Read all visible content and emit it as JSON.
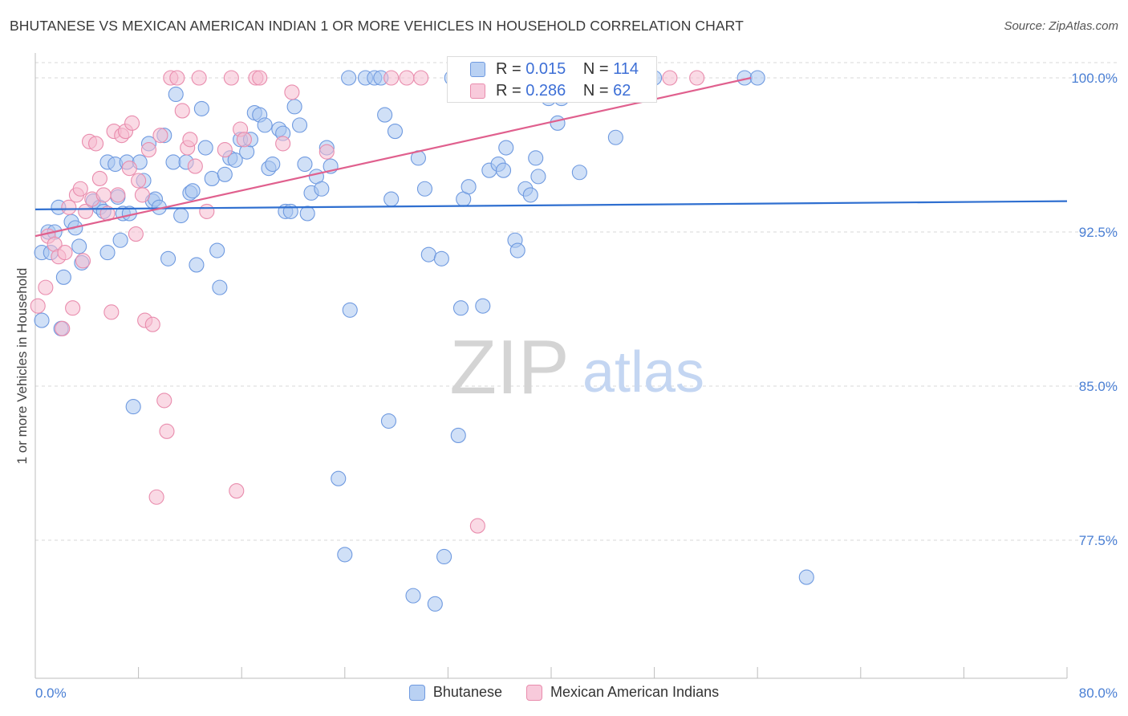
{
  "title": "BHUTANESE VS MEXICAN AMERICAN INDIAN 1 OR MORE VEHICLES IN HOUSEHOLD CORRELATION CHART",
  "source": "Source: ZipAtlas.com",
  "watermark": {
    "zip": "ZIP",
    "atlas": "atlas"
  },
  "colors": {
    "blue_fill": "#a9c6f0",
    "blue_stroke": "#6f9ae0",
    "blue_line": "#2f6fd0",
    "pink_fill": "#f5bcd0",
    "pink_stroke": "#e98cad",
    "pink_line": "#e0608e",
    "axis_label": "#4a7fd4",
    "grid": "#d9d9d9"
  },
  "stats": {
    "blue": {
      "r_label": "R =",
      "r_value": "0.015",
      "n_label": "N =",
      "n_value": "114"
    },
    "pink": {
      "r_label": "R =",
      "r_value": "0.286",
      "n_label": "N =",
      "n_value": "62"
    }
  },
  "chart_data": {
    "type": "scatter",
    "title": "BHUTANESE VS MEXICAN AMERICAN INDIAN 1 OR MORE VEHICLES IN HOUSEHOLD CORRELATION CHART",
    "xlabel": "",
    "ylabel": "1 or more Vehicles in Household",
    "xlim": [
      0,
      80
    ],
    "ylim": [
      70.5,
      101.5
    ],
    "x_tick_labels": [
      "0.0%",
      "80.0%"
    ],
    "y_ticks": [
      {
        "value": 100.0,
        "label": "100.0%"
      },
      {
        "value": 92.5,
        "label": "92.5%"
      },
      {
        "value": 85.0,
        "label": "85.0%"
      },
      {
        "value": 77.5,
        "label": "77.5%"
      }
    ],
    "legend": [
      "Bhutanese",
      "Mexican American Indians"
    ],
    "series": [
      {
        "name": "Bhutanese",
        "r": 0.015,
        "n": 114,
        "trend": {
          "x": [
            0,
            80
          ],
          "y": [
            93.6,
            94.0
          ]
        },
        "points": [
          [
            0.5,
            91.5
          ],
          [
            0.5,
            88.2
          ],
          [
            1.0,
            92.5
          ],
          [
            1.2,
            91.5
          ],
          [
            1.5,
            92.5
          ],
          [
            1.8,
            93.7
          ],
          [
            2.0,
            87.8
          ],
          [
            2.2,
            90.3
          ],
          [
            2.8,
            93.0
          ],
          [
            3.1,
            92.7
          ],
          [
            3.4,
            91.8
          ],
          [
            3.6,
            91.0
          ],
          [
            4.5,
            94.0
          ],
          [
            5.0,
            93.7
          ],
          [
            5.3,
            93.5
          ],
          [
            5.6,
            91.5
          ],
          [
            5.6,
            95.9
          ],
          [
            6.2,
            95.8
          ],
          [
            6.4,
            94.2
          ],
          [
            6.6,
            92.1
          ],
          [
            6.8,
            93.4
          ],
          [
            7.1,
            95.9
          ],
          [
            7.3,
            93.4
          ],
          [
            7.6,
            84.0
          ],
          [
            8.1,
            95.9
          ],
          [
            8.4,
            95.0
          ],
          [
            8.8,
            96.8
          ],
          [
            9.1,
            94.0
          ],
          [
            9.3,
            94.1
          ],
          [
            9.6,
            93.7
          ],
          [
            10.0,
            97.2
          ],
          [
            10.3,
            91.2
          ],
          [
            10.7,
            95.9
          ],
          [
            10.9,
            99.2
          ],
          [
            11.3,
            93.3
          ],
          [
            11.7,
            95.9
          ],
          [
            12.0,
            94.4
          ],
          [
            12.2,
            94.5
          ],
          [
            12.5,
            90.9
          ],
          [
            12.9,
            98.5
          ],
          [
            13.2,
            96.6
          ],
          [
            13.7,
            95.1
          ],
          [
            14.1,
            91.6
          ],
          [
            14.3,
            89.8
          ],
          [
            14.7,
            95.3
          ],
          [
            15.1,
            96.1
          ],
          [
            15.5,
            96.0
          ],
          [
            15.9,
            97.0
          ],
          [
            16.4,
            96.4
          ],
          [
            16.7,
            97.0
          ],
          [
            17.0,
            98.3
          ],
          [
            17.4,
            98.2
          ],
          [
            17.8,
            97.7
          ],
          [
            18.1,
            95.6
          ],
          [
            18.4,
            95.8
          ],
          [
            18.9,
            97.5
          ],
          [
            19.2,
            97.3
          ],
          [
            19.4,
            93.5
          ],
          [
            19.8,
            93.5
          ],
          [
            20.1,
            98.6
          ],
          [
            20.5,
            97.7
          ],
          [
            20.9,
            95.8
          ],
          [
            21.1,
            93.4
          ],
          [
            21.4,
            94.4
          ],
          [
            21.8,
            95.2
          ],
          [
            22.2,
            94.6
          ],
          [
            22.6,
            96.6
          ],
          [
            22.9,
            95.7
          ],
          [
            23.5,
            80.5
          ],
          [
            24.0,
            76.8
          ],
          [
            24.4,
            88.7
          ],
          [
            25.6,
            100.0
          ],
          [
            26.3,
            100.0
          ],
          [
            27.1,
            98.2
          ],
          [
            27.4,
            83.3
          ],
          [
            27.6,
            94.1
          ],
          [
            27.9,
            97.4
          ],
          [
            29.3,
            74.8
          ],
          [
            29.7,
            96.1
          ],
          [
            30.2,
            94.6
          ],
          [
            30.5,
            91.4
          ],
          [
            31.0,
            74.4
          ],
          [
            31.5,
            91.2
          ],
          [
            31.7,
            76.7
          ],
          [
            32.3,
            100.0
          ],
          [
            32.8,
            82.6
          ],
          [
            33.0,
            88.8
          ],
          [
            33.2,
            94.1
          ],
          [
            33.6,
            94.7
          ],
          [
            34.7,
            88.9
          ],
          [
            35.2,
            95.5
          ],
          [
            35.9,
            95.8
          ],
          [
            36.3,
            95.5
          ],
          [
            36.5,
            96.6
          ],
          [
            37.2,
            92.1
          ],
          [
            37.4,
            91.6
          ],
          [
            38.0,
            94.6
          ],
          [
            38.4,
            94.3
          ],
          [
            38.8,
            96.1
          ],
          [
            39.0,
            95.2
          ],
          [
            39.8,
            99.0
          ],
          [
            40.5,
            97.8
          ],
          [
            40.8,
            99.0
          ],
          [
            42.2,
            95.4
          ],
          [
            43.4,
            100.0
          ],
          [
            45.0,
            97.1
          ],
          [
            48.0,
            100.0
          ],
          [
            55.0,
            100.0
          ],
          [
            59.8,
            75.7
          ],
          [
            56.0,
            100.0
          ],
          [
            24.3,
            100.0
          ],
          [
            26.8,
            100.0
          ],
          [
            38.2,
            99.7
          ],
          [
            41.0,
            100.0
          ]
        ]
      },
      {
        "name": "Mexican American Indians",
        "r": 0.286,
        "n": 62,
        "trend": {
          "x": [
            0,
            55.5
          ],
          "y": [
            92.3,
            100.0
          ]
        },
        "points": [
          [
            0.2,
            88.9
          ],
          [
            0.8,
            89.8
          ],
          [
            1.0,
            92.3
          ],
          [
            1.5,
            91.9
          ],
          [
            1.8,
            91.3
          ],
          [
            2.1,
            87.8
          ],
          [
            2.3,
            91.5
          ],
          [
            2.6,
            93.7
          ],
          [
            2.9,
            88.8
          ],
          [
            3.2,
            94.3
          ],
          [
            3.5,
            94.6
          ],
          [
            3.7,
            91.1
          ],
          [
            3.9,
            93.5
          ],
          [
            4.2,
            96.9
          ],
          [
            4.4,
            94.1
          ],
          [
            4.7,
            96.8
          ],
          [
            5.0,
            95.1
          ],
          [
            5.3,
            94.3
          ],
          [
            5.6,
            93.4
          ],
          [
            5.9,
            88.6
          ],
          [
            6.1,
            97.4
          ],
          [
            6.4,
            94.3
          ],
          [
            6.7,
            97.2
          ],
          [
            7.0,
            97.4
          ],
          [
            7.3,
            95.6
          ],
          [
            7.5,
            97.8
          ],
          [
            7.8,
            92.4
          ],
          [
            8.0,
            95.0
          ],
          [
            8.3,
            94.3
          ],
          [
            8.5,
            88.2
          ],
          [
            8.8,
            96.5
          ],
          [
            9.1,
            88.0
          ],
          [
            9.4,
            79.6
          ],
          [
            9.7,
            97.2
          ],
          [
            10.0,
            84.3
          ],
          [
            10.2,
            82.8
          ],
          [
            10.5,
            100.0
          ],
          [
            11.0,
            100.0
          ],
          [
            11.4,
            98.4
          ],
          [
            11.8,
            96.6
          ],
          [
            12.0,
            97.0
          ],
          [
            12.4,
            95.7
          ],
          [
            12.7,
            100.0
          ],
          [
            13.3,
            93.5
          ],
          [
            14.7,
            96.5
          ],
          [
            15.2,
            100.0
          ],
          [
            15.6,
            79.9
          ],
          [
            15.9,
            97.5
          ],
          [
            16.2,
            97.0
          ],
          [
            17.1,
            100.0
          ],
          [
            17.4,
            100.0
          ],
          [
            19.2,
            96.8
          ],
          [
            19.9,
            99.3
          ],
          [
            22.6,
            96.4
          ],
          [
            27.6,
            100.0
          ],
          [
            28.8,
            100.0
          ],
          [
            29.9,
            100.0
          ],
          [
            34.3,
            78.2
          ],
          [
            38.5,
            100.0
          ],
          [
            44.0,
            100.0
          ],
          [
            49.2,
            100.0
          ],
          [
            51.3,
            100.0
          ]
        ]
      }
    ]
  }
}
